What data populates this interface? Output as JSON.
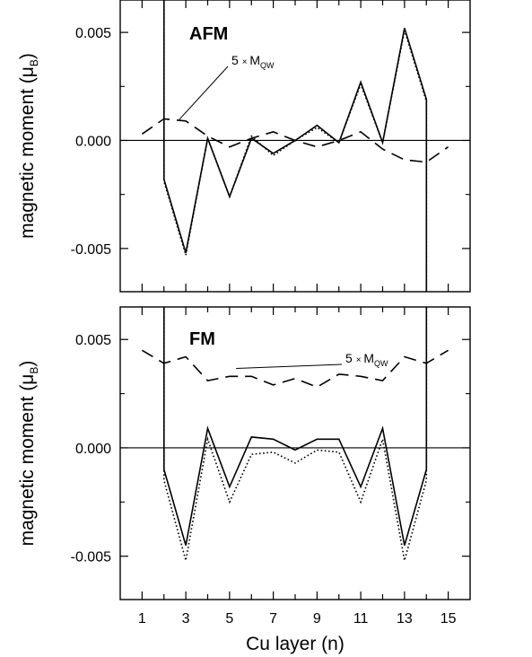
{
  "chart_data": [
    {
      "type": "line",
      "panel_label": "AFM",
      "xlabel": "",
      "ylabel": "magnetic moment (μ",
      "ylabel_sub": "B",
      "ylabel_close": ")",
      "xlim": [
        0,
        16
      ],
      "ylim": [
        -0.007,
        0.0065
      ],
      "yticks": [
        0.005,
        0.0,
        -0.005
      ],
      "ytick_labels": [
        "0.005",
        "0.000",
        "-0.005"
      ],
      "xticks": [
        1,
        2,
        3,
        4,
        5,
        6,
        7,
        8,
        9,
        10,
        11,
        12,
        13,
        14,
        15
      ],
      "zero_line": true,
      "annotation": {
        "text": "5",
        "times": "×",
        "symbol": "M",
        "sub": "QW",
        "target_x": 2.7,
        "target_y": 0.0008
      },
      "series": [
        {
          "style": "solid",
          "x": [
            2,
            2,
            3,
            4,
            5,
            6,
            7,
            8,
            9,
            10,
            11,
            12,
            13,
            14,
            14
          ],
          "y": [
            0.012,
            -0.0018,
            -0.0052,
            0.0001,
            -0.0026,
            0.0001,
            -0.0006,
            0.0,
            0.0007,
            -0.0001,
            0.0027,
            -0.0001,
            0.0052,
            0.0019,
            -0.012
          ]
        },
        {
          "style": "dotted",
          "x": [
            2,
            2,
            3,
            4,
            5,
            6,
            7,
            8,
            9,
            10,
            11,
            12,
            13,
            14,
            14
          ],
          "y": [
            0.012,
            -0.0019,
            -0.0053,
            0.0001,
            -0.0026,
            0.0002,
            -0.0007,
            0.0,
            0.0006,
            -0.0001,
            0.0026,
            -0.0001,
            0.0051,
            0.0018,
            -0.012
          ]
        },
        {
          "style": "dashed",
          "x": [
            1,
            2,
            3,
            4,
            5,
            6,
            7,
            8,
            9,
            10,
            11,
            12,
            13,
            14,
            15
          ],
          "y": [
            0.0003,
            0.001,
            0.0009,
            0.0002,
            -0.0003,
            0.0001,
            0.0004,
            0.0,
            -0.0003,
            0.0,
            0.0004,
            -0.0004,
            -0.0009,
            -0.001,
            -0.0003
          ]
        }
      ]
    },
    {
      "type": "line",
      "panel_label": "FM",
      "xlabel": "Cu layer (n)",
      "ylabel": "magnetic moment (μ",
      "ylabel_sub": "B",
      "ylabel_close": ")",
      "xlim": [
        0,
        16
      ],
      "ylim": [
        -0.007,
        0.0065
      ],
      "yticks": [
        0.005,
        0.0,
        -0.005
      ],
      "ytick_labels": [
        "0.005",
        "0.000",
        "-0.005"
      ],
      "xticks": [
        1,
        2,
        3,
        4,
        5,
        6,
        7,
        8,
        9,
        10,
        11,
        12,
        13,
        14,
        15
      ],
      "xtick_labels": [
        "1",
        "3",
        "5",
        "7",
        "9",
        "11",
        "13",
        "15"
      ],
      "zero_line": true,
      "annotation": {
        "text": "5",
        "times": "×",
        "symbol": "M",
        "sub": "QW",
        "target_x": 5.3,
        "target_y": 0.0035
      },
      "series": [
        {
          "style": "solid",
          "x": [
            2,
            2,
            3,
            4,
            5,
            6,
            7,
            8,
            9,
            10,
            11,
            12,
            13,
            14,
            14
          ],
          "y": [
            0.012,
            -0.001,
            -0.0045,
            0.0009,
            -0.0018,
            0.0005,
            0.0004,
            -0.0001,
            0.0004,
            0.0004,
            -0.0018,
            0.0009,
            -0.0045,
            -0.001,
            0.012
          ]
        },
        {
          "style": "dotted",
          "x": [
            2,
            2,
            3,
            4,
            5,
            6,
            7,
            8,
            9,
            10,
            11,
            12,
            13,
            14,
            14
          ],
          "y": [
            0.012,
            -0.0015,
            -0.0052,
            0.0004,
            -0.0025,
            -0.0003,
            -0.0002,
            -0.0007,
            -0.0001,
            -0.0002,
            -0.0025,
            0.0004,
            -0.0052,
            -0.0015,
            0.012
          ]
        },
        {
          "style": "dashed",
          "x": [
            1,
            2,
            3,
            4,
            5,
            6,
            7,
            8,
            9,
            10,
            11,
            12,
            13,
            14,
            15
          ],
          "y": [
            0.0045,
            0.0039,
            0.0042,
            0.0031,
            0.0033,
            0.0033,
            0.0029,
            0.0032,
            0.0028,
            0.0034,
            0.0033,
            0.0031,
            0.0042,
            0.0039,
            0.0045
          ]
        }
      ]
    }
  ]
}
